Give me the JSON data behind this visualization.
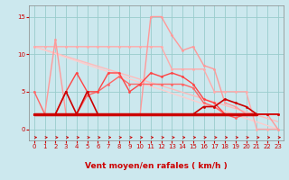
{
  "background_color": "#cce8ee",
  "grid_color": "#99cccc",
  "x_label": "Vent moyen/en rafales ( km/h )",
  "x_ticks": [
    0,
    1,
    2,
    3,
    4,
    5,
    6,
    7,
    8,
    9,
    10,
    11,
    12,
    13,
    14,
    15,
    16,
    17,
    18,
    19,
    20,
    21,
    22,
    23
  ],
  "y_ticks": [
    0,
    5,
    10,
    15
  ],
  "ylim": [
    -1.5,
    16.5
  ],
  "xlim": [
    -0.5,
    23.5
  ],
  "lines": [
    {
      "x": [
        0,
        1,
        2,
        3,
        4,
        5,
        6,
        7,
        8,
        9,
        10,
        11,
        12,
        13,
        14,
        15,
        16,
        17,
        18,
        19,
        20,
        21,
        22,
        23
      ],
      "y": [
        11,
        11,
        11,
        11,
        11,
        11,
        11,
        11,
        11,
        11,
        11,
        11,
        11,
        8,
        8,
        8,
        8,
        5,
        5,
        5,
        5,
        0,
        0,
        0
      ],
      "color": "#ffaaaa",
      "lw": 1.0,
      "marker": "o",
      "ms": 2.0,
      "zorder": 3
    },
    {
      "x": [
        0,
        23
      ],
      "y": [
        11,
        1
      ],
      "color": "#ffbbbb",
      "lw": 1.0,
      "marker": null,
      "ms": 0,
      "zorder": 2
    },
    {
      "x": [
        0,
        23
      ],
      "y": [
        11,
        0
      ],
      "color": "#ffcccc",
      "lw": 1.0,
      "marker": null,
      "ms": 0,
      "zorder": 2
    },
    {
      "x": [
        0,
        1,
        2,
        3,
        4,
        5,
        6,
        7,
        8,
        9,
        10,
        11,
        12,
        13,
        14,
        15,
        16,
        17,
        18,
        19,
        20,
        21,
        22,
        23
      ],
      "y": [
        2,
        2,
        12,
        2,
        2,
        2,
        2,
        2,
        2,
        2,
        2,
        15,
        15,
        12.5,
        10.5,
        11,
        8.5,
        8,
        3.5,
        3,
        2,
        2,
        2,
        0
      ],
      "color": "#ff9999",
      "lw": 1.0,
      "marker": "o",
      "ms": 2.0,
      "zorder": 3
    },
    {
      "x": [
        0,
        1,
        2,
        3,
        4,
        5,
        6,
        7,
        8,
        9,
        10,
        11,
        12,
        13,
        14,
        15,
        16,
        17,
        18,
        19,
        20,
        21,
        22,
        23
      ],
      "y": [
        5,
        2,
        2,
        2,
        2,
        4.5,
        5,
        6,
        7,
        6,
        6,
        6,
        6,
        6,
        6,
        5.5,
        3.5,
        3,
        2,
        1.5,
        2,
        2,
        2,
        2
      ],
      "color": "#ff6666",
      "lw": 1.0,
      "marker": "o",
      "ms": 2.0,
      "zorder": 4
    },
    {
      "x": [
        0,
        1,
        2,
        3,
        4,
        5,
        6,
        7,
        8,
        9,
        10,
        11,
        12,
        13,
        14,
        15,
        16,
        17,
        18,
        19,
        20,
        21,
        22,
        23
      ],
      "y": [
        2,
        2,
        2,
        5,
        7.5,
        5,
        5,
        7.5,
        7.5,
        5,
        6,
        7.5,
        7,
        7.5,
        7,
        6,
        4,
        3.5,
        2,
        2,
        2,
        2,
        2,
        2
      ],
      "color": "#ff4444",
      "lw": 1.0,
      "marker": "o",
      "ms": 2.0,
      "zorder": 4
    },
    {
      "x": [
        0,
        21
      ],
      "y": [
        2,
        2
      ],
      "color": "#cc0000",
      "lw": 2.5,
      "marker": null,
      "ms": 0,
      "zorder": 6
    },
    {
      "x": [
        0,
        1,
        2,
        3,
        4,
        5,
        6,
        7,
        8,
        9,
        10,
        11,
        12,
        13,
        14,
        15,
        16,
        17,
        18,
        19,
        20,
        21,
        22,
        23
      ],
      "y": [
        2,
        2,
        2,
        5,
        2,
        5,
        2,
        2,
        2,
        2,
        2,
        2,
        2,
        2,
        2,
        2,
        3,
        3,
        4,
        3.5,
        3,
        2,
        2,
        2
      ],
      "color": "#cc0000",
      "lw": 1.2,
      "marker": "o",
      "ms": 2.0,
      "zorder": 5
    }
  ],
  "axis_label_fontsize": 6.5,
  "tick_fontsize": 5.0,
  "label_color": "#cc0000",
  "tick_color": "#cc0000",
  "spine_color": "#888888"
}
